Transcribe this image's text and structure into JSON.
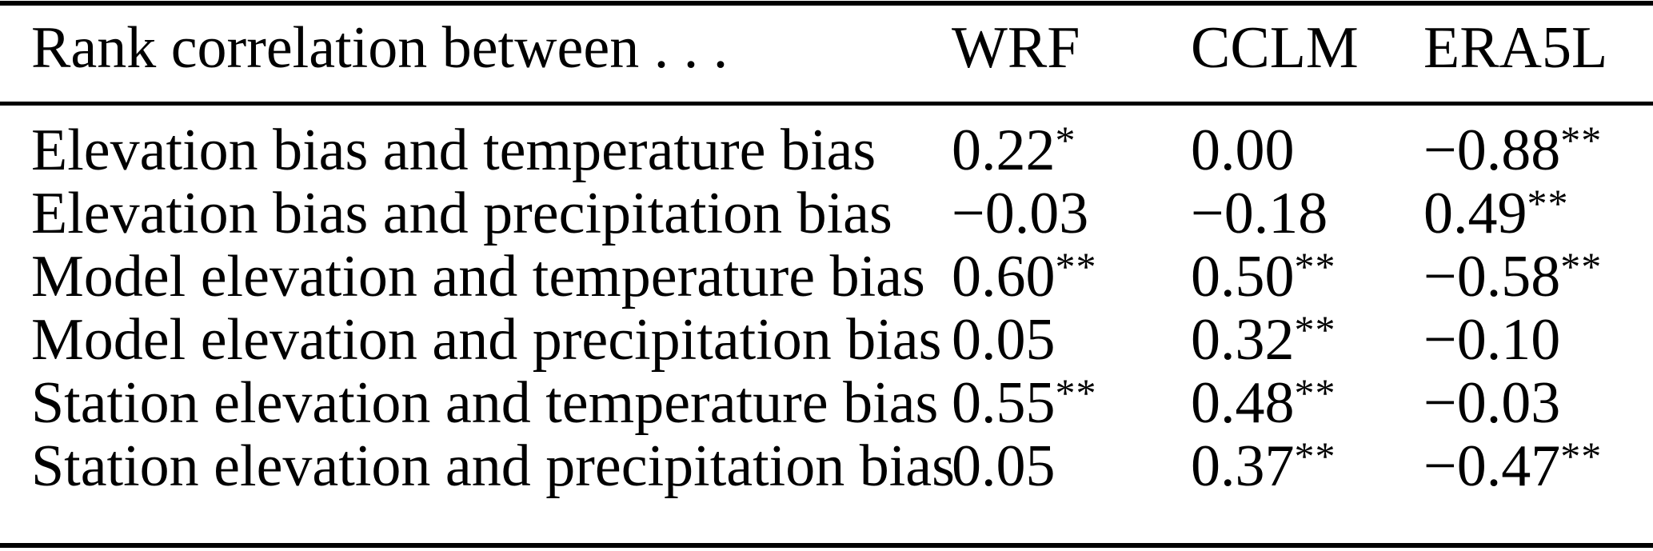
{
  "page": {
    "background_color": "#ffffff",
    "text_color": "#000000",
    "rule_color": "#000000"
  },
  "table": {
    "header": {
      "label": "Rank correlation between . . .",
      "columns": [
        "WRF",
        "CCLM",
        "ERA5L"
      ]
    },
    "rows": [
      {
        "label": "Elevation bias and temperature bias",
        "values": [
          {
            "v": "0.22",
            "sig": "*"
          },
          {
            "v": "0.00",
            "sig": ""
          },
          {
            "v": "−0.88",
            "sig": "**"
          }
        ]
      },
      {
        "label": "Elevation bias and precipitation bias",
        "values": [
          {
            "v": "−0.03",
            "sig": ""
          },
          {
            "v": "−0.18",
            "sig": ""
          },
          {
            "v": "0.49",
            "sig": "**"
          }
        ]
      },
      {
        "label": "Model elevation and temperature bias",
        "values": [
          {
            "v": "0.60",
            "sig": "**"
          },
          {
            "v": "0.50",
            "sig": "**"
          },
          {
            "v": "−0.58",
            "sig": "**"
          }
        ]
      },
      {
        "label": "Model elevation and precipitation bias",
        "values": [
          {
            "v": "0.05",
            "sig": ""
          },
          {
            "v": "0.32",
            "sig": "**"
          },
          {
            "v": "−0.10",
            "sig": ""
          }
        ]
      },
      {
        "label": "Station elevation and temperature bias",
        "values": [
          {
            "v": "0.55",
            "sig": "**"
          },
          {
            "v": "0.48",
            "sig": "**"
          },
          {
            "v": "−0.03",
            "sig": ""
          }
        ]
      },
      {
        "label": "Station elevation and precipitation bias",
        "values": [
          {
            "v": "0.05",
            "sig": ""
          },
          {
            "v": "0.37",
            "sig": "**"
          },
          {
            "v": "−0.47",
            "sig": "**"
          }
        ]
      }
    ]
  }
}
